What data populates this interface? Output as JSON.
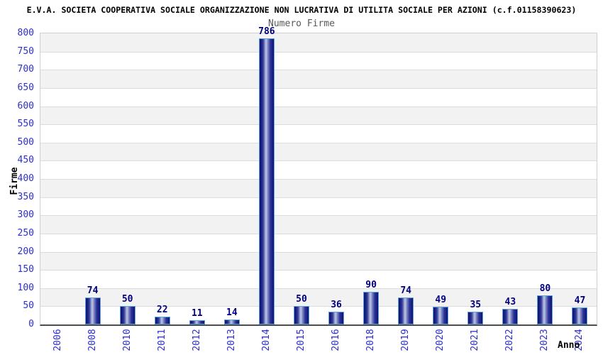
{
  "chart_data": {
    "type": "bar",
    "title": "E.V.A. SOCIETA COOPERATIVA SOCIALE ORGANIZZAZIONE NON LUCRATIVA DI UTILITA SOCIALE PER AZIONI (c.f.01158390623)",
    "subtitle": "Numero Firme",
    "xlabel": "Anno",
    "ylabel": "Firme",
    "categories": [
      "2006",
      "2008",
      "2010",
      "2011",
      "2012",
      "2013",
      "2014",
      "2015",
      "2016",
      "2018",
      "2019",
      "2020",
      "2021",
      "2022",
      "2023",
      "2024"
    ],
    "values": [
      0,
      74,
      50,
      22,
      11,
      14,
      786,
      50,
      36,
      90,
      74,
      49,
      35,
      43,
      80,
      47
    ],
    "ylim": [
      0,
      800
    ],
    "ytick_step": 50,
    "grid": "alternating-horizontal-bands",
    "legend": "none",
    "colors": {
      "axis_tick_label": "#2e2ecc",
      "value_label": "#000080",
      "bar_border": "#5ba3dc",
      "bar_dark": "#12126e",
      "bar_highlight": "#b9c1e2",
      "band_gray": "#f2f2f2",
      "band_white": "#ffffff",
      "grid_line": "#dcdcdc",
      "axis_line": "#4d4d4d",
      "plot_border": "#cfcfcf",
      "title_color": "#000000",
      "subtitle_color": "#595959"
    }
  }
}
